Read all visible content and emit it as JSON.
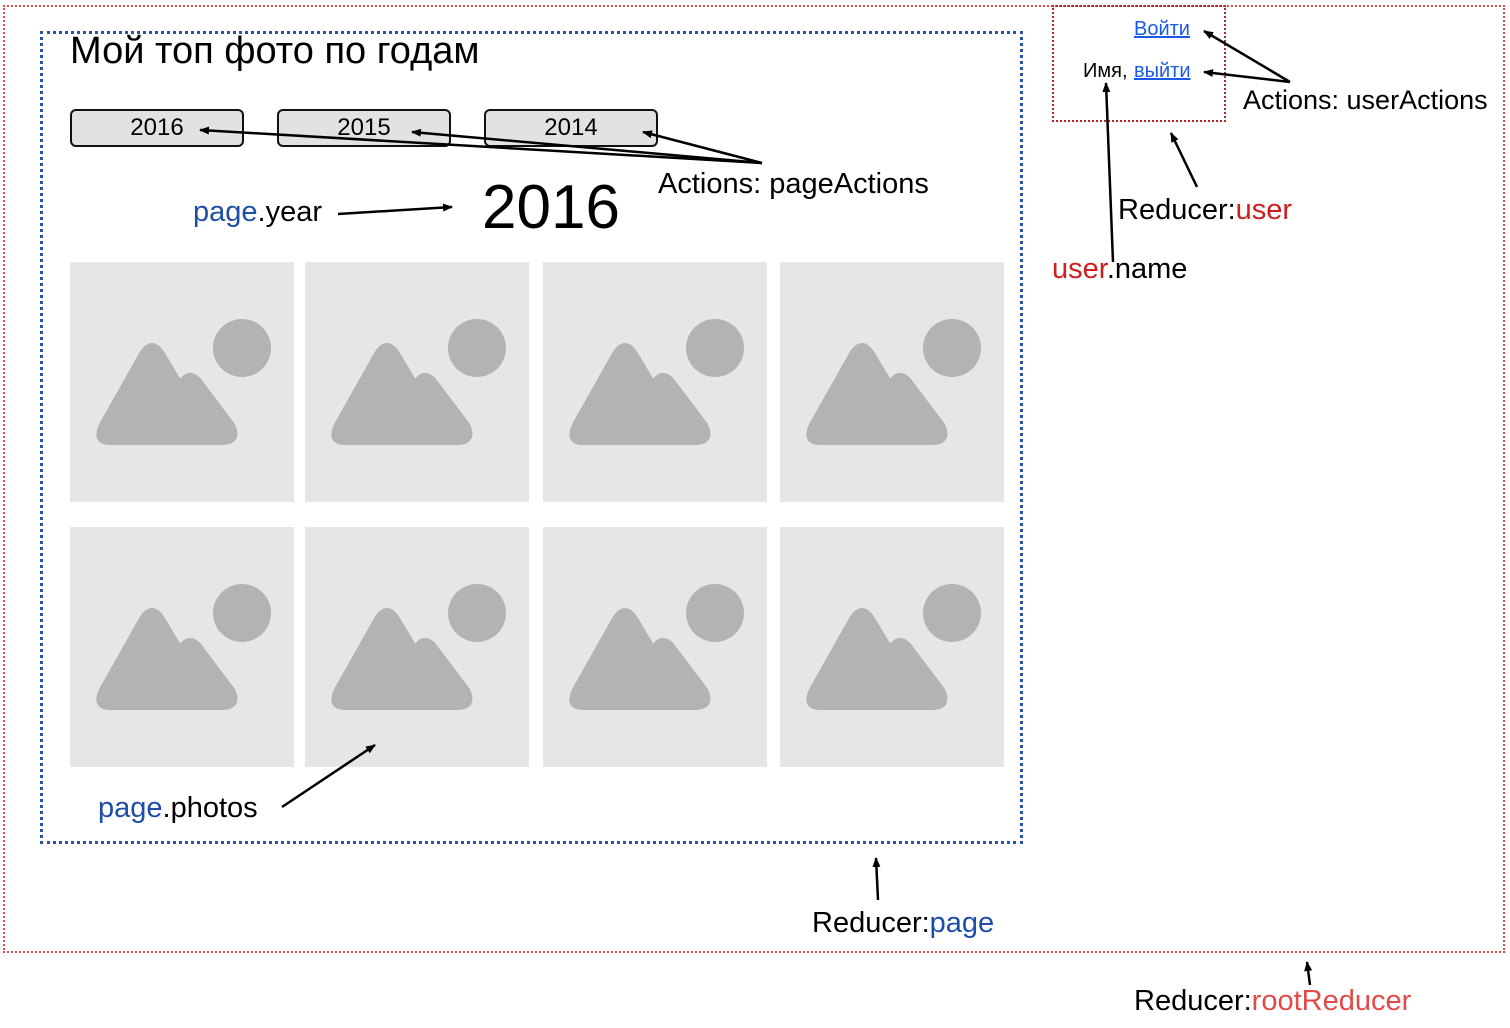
{
  "page": {
    "title": "Мой топ фото по годам",
    "year_buttons": [
      "2016",
      "2015",
      "2014"
    ],
    "current_year": "2016"
  },
  "user_panel": {
    "login_link": "Войти",
    "name": "Имя,",
    "logout_link": "выйти"
  },
  "annotations": {
    "page_actions": "Actions: pageActions",
    "user_actions": "Actions: userActions",
    "page_year": {
      "obj": "page",
      "field": ".year"
    },
    "page_photos": {
      "obj": "page",
      "field": ".photos"
    },
    "user_name": {
      "obj": "user",
      "field": ".name"
    },
    "reducer_user": {
      "prefix": "Reducer:",
      "name": "user"
    },
    "reducer_page": {
      "prefix": "Reducer:",
      "name": "page"
    },
    "reducer_root": {
      "prefix": "Reducer:",
      "name": "rootReducer"
    }
  },
  "photos": [
    "image-placeholder-icon",
    "image-placeholder-icon",
    "image-placeholder-icon",
    "image-placeholder-icon",
    "image-placeholder-icon",
    "image-placeholder-icon",
    "image-placeholder-icon",
    "image-placeholder-icon"
  ],
  "colors": {
    "root_border": "#e24a4a",
    "page_border": "#2a52a8",
    "user_border": "#b8262a",
    "page_label": "#1f4ea8",
    "user_label": "#cc1f1f",
    "root_label": "#e24a4a",
    "link": "#1a5ae8",
    "placeholder_bg": "#e6e6e6",
    "placeholder_shape": "#b3b3b3"
  }
}
